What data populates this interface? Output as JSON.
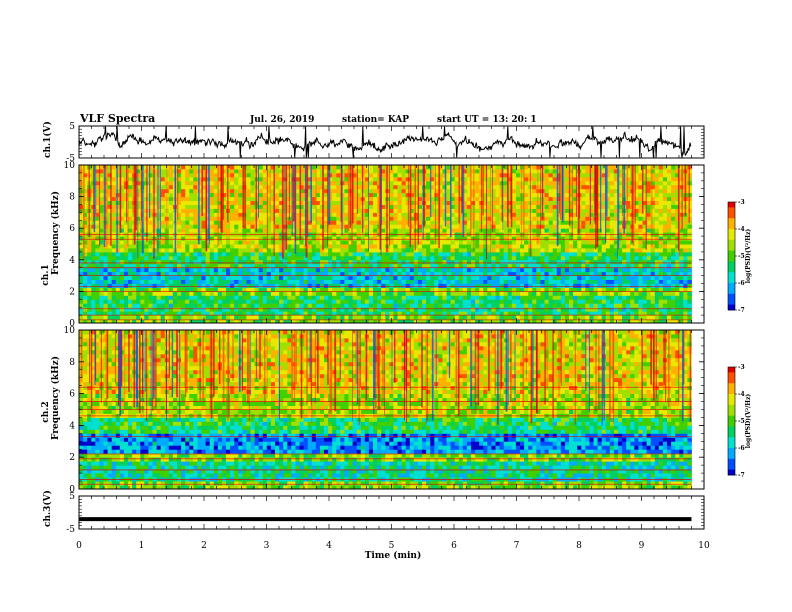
{
  "header": {
    "title": "VLF Spectra",
    "date": "Jul. 26, 2019",
    "station": "station= KAP",
    "start": "start UT = 13: 20: 1"
  },
  "chart_data": [
    {
      "type": "line",
      "name": "ch1-waveform",
      "ylabel": "ch.1(V)",
      "ylim": [
        -5,
        5
      ],
      "yticks": [
        "5",
        "-5"
      ],
      "xlim": [
        0,
        10
      ],
      "description_values": "noisy waveform oscillating roughly between -3 and 3 V"
    },
    {
      "type": "heatmap",
      "name": "ch1-spectrogram",
      "ylabel": "ch.1\nFrequency (kHz)",
      "ylabel_line1": "ch.1",
      "ylabel_line2": "Frequency (kHz)",
      "ylim": [
        0,
        10
      ],
      "yticks": [
        "0",
        "2",
        "4",
        "6",
        "8",
        "10"
      ],
      "xlim": [
        0,
        9.8
      ],
      "colorbar": {
        "label": "log(PSD)(V²/Hz)",
        "range": [
          -7,
          -3
        ],
        "ticks": [
          "-3",
          "-4",
          "-5",
          "-6",
          "-7"
        ]
      }
    },
    {
      "type": "heatmap",
      "name": "ch2-spectrogram",
      "ylabel_line1": "ch.2",
      "ylabel_line2": "Frequency (kHz)",
      "ylim": [
        0,
        10
      ],
      "yticks": [
        "0",
        "2",
        "4",
        "6",
        "8",
        "10"
      ],
      "xlim": [
        0,
        9.8
      ],
      "colorbar": {
        "label": "log(PSD)(V²/Hz)",
        "range": [
          -7,
          -3
        ],
        "ticks": [
          "-3",
          "-4",
          "-5",
          "-6",
          "-7"
        ]
      }
    },
    {
      "type": "line",
      "name": "ch3-waveform",
      "ylabel": "ch.3(V)",
      "ylim": [
        -5,
        5
      ],
      "yticks": [
        "5",
        "-5"
      ],
      "value": -2
    }
  ],
  "xaxis": {
    "label": "Time (min)",
    "ticks": [
      "0",
      "1",
      "2",
      "3",
      "4",
      "5",
      "6",
      "7",
      "8",
      "9",
      "10"
    ],
    "range": [
      0,
      10
    ]
  },
  "colors": {
    "frame": "#000000"
  }
}
